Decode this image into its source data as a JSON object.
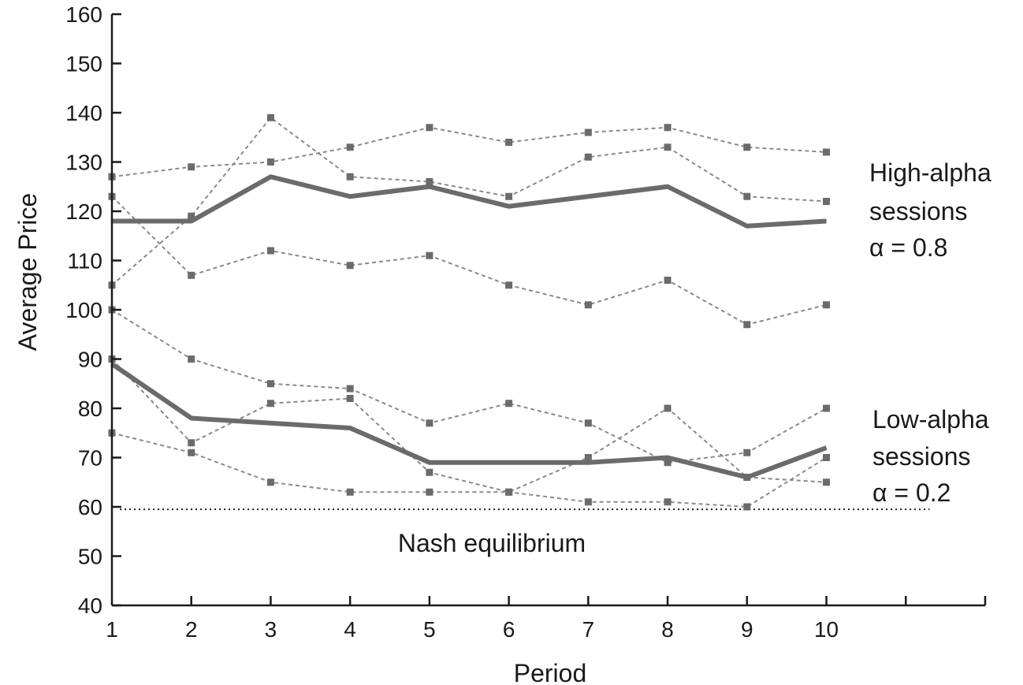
{
  "chart_data": {
    "type": "line",
    "xlabel": "Period",
    "ylabel": "Average Price",
    "xlim": [
      1,
      12
    ],
    "ylim": [
      40,
      160
    ],
    "x_ticks": [
      1,
      2,
      3,
      4,
      5,
      6,
      7,
      8,
      9,
      10
    ],
    "y_ticks": [
      40,
      50,
      60,
      70,
      80,
      90,
      100,
      110,
      120,
      130,
      140,
      150,
      160
    ],
    "grid": false,
    "x": [
      1,
      2,
      3,
      4,
      5,
      6,
      7,
      8,
      9,
      10
    ],
    "series": [
      {
        "group": "high",
        "style": "mean",
        "values": [
          118,
          118,
          127,
          123,
          125,
          121,
          123,
          125,
          117,
          118
        ]
      },
      {
        "group": "low",
        "style": "mean",
        "values": [
          89,
          78,
          77,
          76,
          69,
          69,
          69,
          70,
          66,
          72
        ]
      },
      {
        "group": "high",
        "style": "session",
        "values": [
          127,
          129,
          130,
          133,
          137,
          134,
          136,
          137,
          133,
          132
        ]
      },
      {
        "group": "high",
        "style": "session",
        "values": [
          105,
          119,
          139,
          127,
          126,
          123,
          131,
          133,
          123,
          122
        ]
      },
      {
        "group": "high",
        "style": "session",
        "values": [
          123,
          107,
          112,
          109,
          111,
          105,
          101,
          106,
          97,
          101
        ]
      },
      {
        "group": "low",
        "style": "session",
        "values": [
          100,
          90,
          85,
          84,
          77,
          81,
          77,
          69,
          71,
          80
        ]
      },
      {
        "group": "low",
        "style": "session",
        "values": [
          90,
          73,
          81,
          82,
          67,
          63,
          70,
          80,
          66,
          65
        ]
      },
      {
        "group": "low",
        "style": "session",
        "values": [
          75,
          71,
          65,
          63,
          63,
          63,
          61,
          61,
          60,
          70
        ]
      }
    ],
    "reference_line": {
      "y": 59.5,
      "label": "Nash equilibrium"
    },
    "annotations": [
      {
        "lines": [
          "High-alpha",
          "sessions",
          "α = 0.8"
        ]
      },
      {
        "lines": [
          "Low-alpha",
          "sessions",
          "α = 0.2"
        ]
      }
    ],
    "colors": {
      "mean": "#6b6b6b",
      "session": "#8a8a8a",
      "axis": "#1a1a1a",
      "reference": "#1a1a1a"
    }
  }
}
